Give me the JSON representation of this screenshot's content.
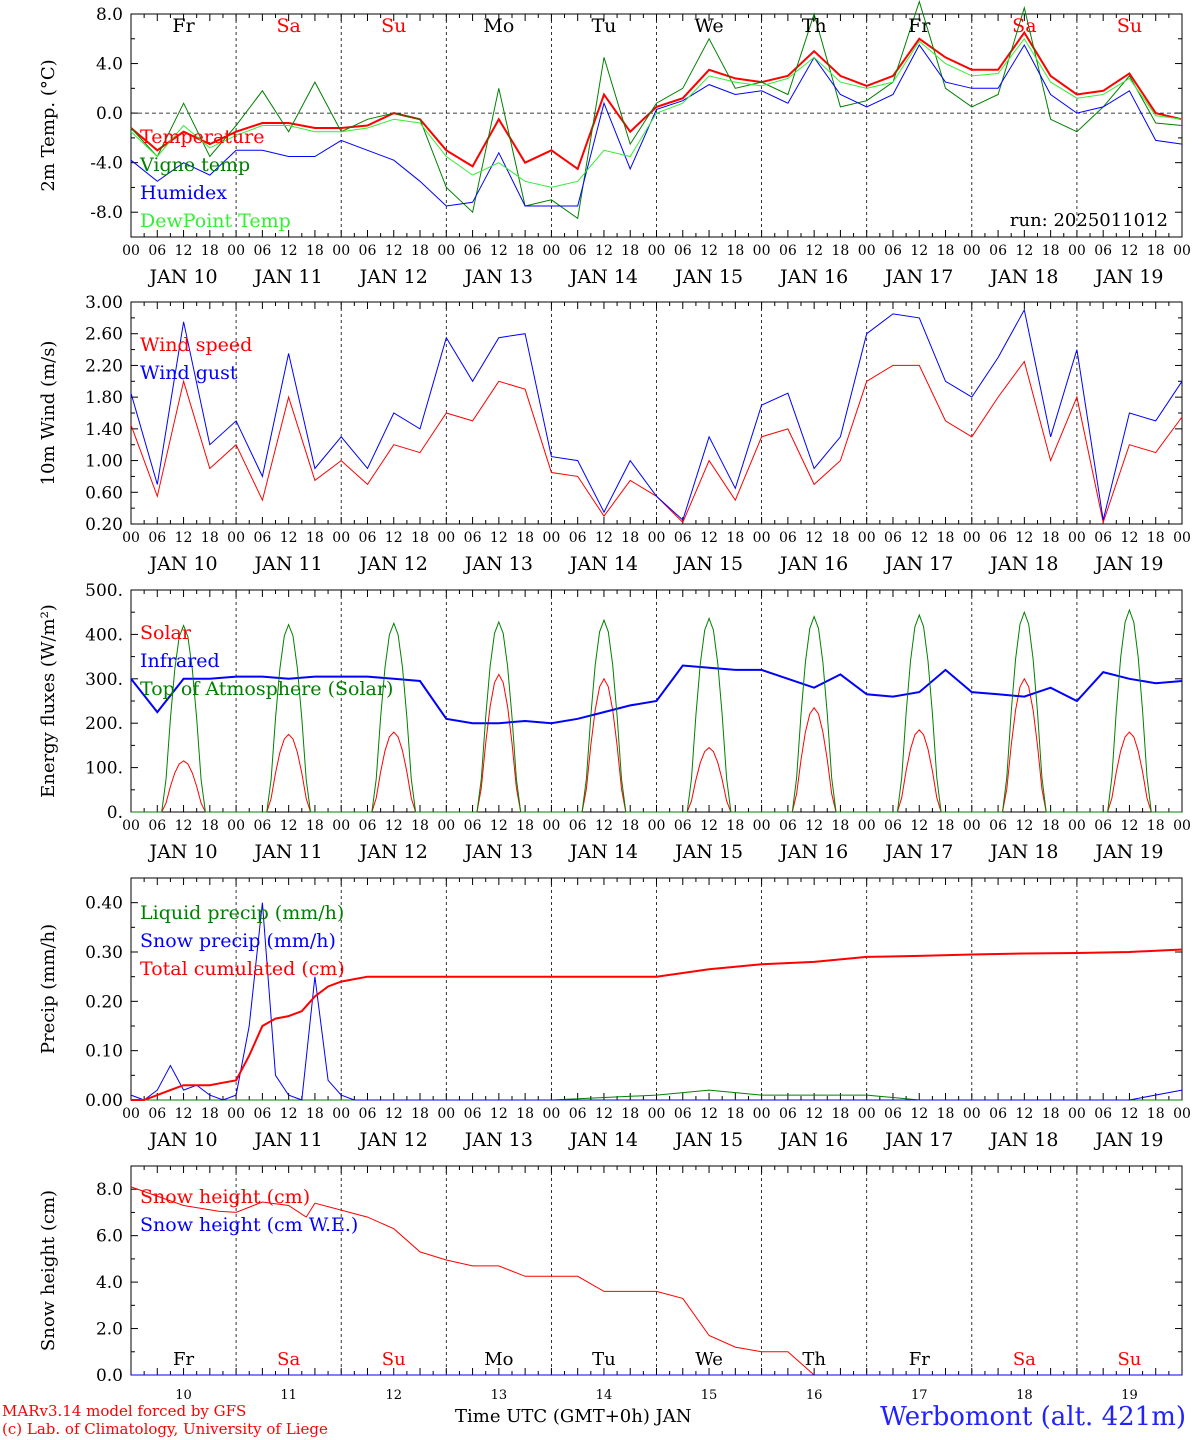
{
  "meta": {
    "run_label": "run: 2025011012",
    "model_credit": "MARv3.14 model forced by GFS",
    "lab_credit": "(c) Lab. of Climatology, University of Liege",
    "site": "Werbomont (alt. 421m)",
    "xaxis_title": "Time UTC (GMT+0h) JAN"
  },
  "axis": {
    "days": [
      "10",
      "11",
      "12",
      "13",
      "14",
      "15",
      "16",
      "17",
      "18",
      "19"
    ],
    "day_labels": [
      "JAN 10",
      "JAN 11",
      "JAN 12",
      "JAN 13",
      "JAN 14",
      "JAN 15",
      "JAN 16",
      "JAN 17",
      "JAN 18",
      "JAN 19"
    ],
    "hour_labels": [
      "00",
      "06",
      "12",
      "18"
    ],
    "weekday": [
      {
        "name": "Fr",
        "color": "#000000"
      },
      {
        "name": "Sa",
        "color": "#ff0000"
      },
      {
        "name": "Su",
        "color": "#ff0000"
      },
      {
        "name": "Mo",
        "color": "#000000"
      },
      {
        "name": "Tu",
        "color": "#000000"
      },
      {
        "name": "We",
        "color": "#000000"
      },
      {
        "name": "Th",
        "color": "#000000"
      },
      {
        "name": "Fr",
        "color": "#000000"
      },
      {
        "name": "Sa",
        "color": "#ff0000"
      },
      {
        "name": "Su",
        "color": "#ff0000"
      }
    ]
  },
  "colors": {
    "red": "#ff0000",
    "green": "#008000",
    "blue": "#0000ff",
    "lightgreen": "#33ee33"
  },
  "chart_data": [
    {
      "type": "line",
      "ylabel": "2m Temp. (°C)",
      "ylim": [
        -10,
        8
      ],
      "yticks": [
        -8,
        -4,
        0,
        4,
        8
      ],
      "ytick_labels": [
        "-8.0",
        "-4.0",
        "0.0",
        "4.0",
        "8.0"
      ],
      "zero_line": true,
      "x": [
        0,
        6,
        12,
        18,
        24,
        30,
        36,
        42,
        48,
        54,
        60,
        66,
        72,
        78,
        84,
        90,
        96,
        102,
        108,
        114,
        120,
        126,
        132,
        138,
        144,
        150,
        156,
        162,
        168,
        174,
        180,
        186,
        192,
        198,
        204,
        210,
        216,
        222,
        228,
        234,
        240
      ],
      "series": [
        {
          "name": "Temperature",
          "color": "#ff0000",
          "width": 2,
          "values": [
            -1.2,
            -3.0,
            -1.5,
            -2.5,
            -1.5,
            -0.8,
            -0.8,
            -1.2,
            -1.2,
            -1.0,
            0.0,
            -0.5,
            -3.0,
            -4.3,
            -0.5,
            -4.0,
            -3.0,
            -4.5,
            1.5,
            -1.5,
            0.5,
            1.2,
            3.5,
            2.8,
            2.5,
            3.0,
            5.0,
            3.0,
            2.2,
            3.0,
            6.0,
            4.5,
            3.5,
            3.5,
            6.5,
            3.0,
            1.5,
            1.8,
            3.2,
            0.0,
            -0.5
          ]
        },
        {
          "name": "Vigne temp",
          "color": "#008000",
          "width": 1,
          "values": [
            -1.2,
            -3.5,
            0.8,
            -3.5,
            -1.0,
            1.8,
            -1.5,
            2.5,
            -1.5,
            -0.5,
            0.0,
            -0.5,
            -6.0,
            -8.0,
            2.0,
            -7.5,
            -7.0,
            -8.5,
            4.5,
            -2.5,
            0.8,
            2.0,
            6.0,
            2.0,
            2.5,
            1.5,
            8.0,
            0.5,
            1.0,
            2.5,
            9.0,
            2.0,
            0.5,
            1.5,
            8.5,
            -0.5,
            -1.5,
            0.5,
            3.0,
            -0.8,
            -1.0
          ]
        },
        {
          "name": "Humidex",
          "color": "#0000ff",
          "width": 1,
          "values": [
            -3.8,
            -5.5,
            -4.0,
            -5.0,
            -3.0,
            -3.0,
            -3.5,
            -3.5,
            -2.2,
            -3.0,
            -3.8,
            -5.5,
            -7.5,
            -7.2,
            -3.2,
            -7.5,
            -7.5,
            -7.5,
            0.8,
            -4.5,
            0.3,
            1.0,
            2.3,
            1.5,
            1.8,
            0.8,
            4.5,
            1.5,
            0.5,
            1.5,
            5.5,
            2.5,
            2.0,
            2.0,
            5.5,
            1.5,
            0.0,
            0.5,
            1.8,
            -2.2,
            -2.5
          ]
        },
        {
          "name": "DewPoint Temp",
          "color": "#33ee33",
          "width": 1,
          "values": [
            -1.5,
            -3.5,
            -1.0,
            -2.8,
            -1.8,
            -1.0,
            -1.0,
            -1.5,
            -1.5,
            -1.2,
            -0.5,
            -0.8,
            -3.5,
            -5.0,
            -4.0,
            -5.5,
            -6.0,
            -5.5,
            -3.0,
            -3.5,
            0.0,
            0.8,
            3.0,
            2.5,
            2.2,
            2.8,
            4.5,
            2.5,
            2.0,
            2.5,
            5.8,
            4.0,
            3.0,
            3.2,
            6.0,
            2.5,
            1.2,
            1.5,
            2.8,
            -0.2,
            -0.5
          ]
        }
      ],
      "legend": {
        "placement": "top-left"
      }
    },
    {
      "type": "line",
      "ylabel": "10m Wind (m/s)",
      "ylim": [
        0.2,
        3.0
      ],
      "yticks": [
        0.2,
        0.6,
        1.0,
        1.4,
        1.8,
        2.2,
        2.6,
        3.0
      ],
      "ytick_labels": [
        "0.20",
        "0.60",
        "1.00",
        "1.40",
        "1.80",
        "2.20",
        "2.60",
        "3.00"
      ],
      "x": [
        0,
        6,
        12,
        18,
        24,
        30,
        36,
        42,
        48,
        54,
        60,
        66,
        72,
        78,
        84,
        90,
        96,
        102,
        108,
        114,
        120,
        126,
        132,
        138,
        144,
        150,
        156,
        162,
        168,
        174,
        180,
        186,
        192,
        198,
        204,
        210,
        216,
        222,
        228,
        234,
        240
      ],
      "series": [
        {
          "name": "Wind speed",
          "color": "#ff0000",
          "width": 1,
          "values": [
            1.45,
            0.55,
            2.0,
            0.9,
            1.2,
            0.5,
            1.8,
            0.75,
            1.0,
            0.7,
            1.2,
            1.1,
            1.6,
            1.5,
            2.0,
            1.9,
            0.85,
            0.8,
            0.3,
            0.75,
            0.55,
            0.22,
            1.0,
            0.5,
            1.3,
            1.4,
            0.7,
            1.0,
            2.0,
            2.2,
            2.2,
            1.5,
            1.3,
            1.8,
            2.25,
            1.0,
            1.8,
            0.22,
            1.2,
            1.1,
            1.55
          ]
        },
        {
          "name": "Wind gust",
          "color": "#0000ff",
          "width": 1,
          "values": [
            1.85,
            0.7,
            2.75,
            1.2,
            1.5,
            0.8,
            2.35,
            0.9,
            1.3,
            0.9,
            1.6,
            1.4,
            2.55,
            2.0,
            2.55,
            2.6,
            1.05,
            1.0,
            0.35,
            1.0,
            0.55,
            0.25,
            1.3,
            0.65,
            1.7,
            1.85,
            0.9,
            1.3,
            2.6,
            2.85,
            2.8,
            2.0,
            1.8,
            2.3,
            2.9,
            1.3,
            2.4,
            0.25,
            1.6,
            1.5,
            2.0
          ]
        }
      ],
      "legend": {
        "placement": "top-left"
      }
    },
    {
      "type": "line",
      "ylabel": "Energy fluxes (W/m²)",
      "ylim": [
        0,
        500
      ],
      "yticks": [
        0,
        100,
        200,
        300,
        400,
        500
      ],
      "ytick_labels": [
        "0.",
        "100.",
        "200.",
        "300.",
        "400.",
        "500."
      ],
      "x": [
        0,
        6,
        12,
        18,
        24,
        30,
        36,
        42,
        48,
        54,
        60,
        66,
        72,
        78,
        84,
        90,
        96,
        102,
        108,
        114,
        120,
        126,
        132,
        138,
        144,
        150,
        156,
        162,
        168,
        174,
        180,
        186,
        192,
        198,
        204,
        210,
        216,
        222,
        228,
        234,
        240
      ],
      "series": [
        {
          "name": "Solar",
          "color": "#ff0000",
          "width": 1,
          "peaks": [
            {
              "center": 12,
              "value": 115
            },
            {
              "center": 36,
              "value": 175
            },
            {
              "center": 60,
              "value": 180
            },
            {
              "center": 84,
              "value": 310
            },
            {
              "center": 108,
              "value": 300
            },
            {
              "center": 132,
              "value": 145
            },
            {
              "center": 156,
              "value": 235
            },
            {
              "center": 180,
              "value": 185
            },
            {
              "center": 204,
              "value": 300
            },
            {
              "center": 228,
              "value": 180
            }
          ],
          "half_width": 4.5
        },
        {
          "name": "Infrared",
          "color": "#0000ff",
          "width": 2,
          "values": [
            300,
            225,
            300,
            300,
            305,
            305,
            300,
            305,
            305,
            305,
            300,
            295,
            210,
            200,
            200,
            205,
            200,
            210,
            225,
            240,
            250,
            330,
            325,
            320,
            320,
            300,
            280,
            310,
            265,
            260,
            270,
            320,
            270,
            265,
            260,
            280,
            250,
            315,
            300,
            290,
            295
          ]
        },
        {
          "name": "Top of Atmosphere (Solar)",
          "color": "#008000",
          "width": 1,
          "peaks": [
            {
              "center": 12,
              "value": 420
            },
            {
              "center": 36,
              "value": 422
            },
            {
              "center": 60,
              "value": 425
            },
            {
              "center": 84,
              "value": 428
            },
            {
              "center": 108,
              "value": 432
            },
            {
              "center": 132,
              "value": 436
            },
            {
              "center": 156,
              "value": 440
            },
            {
              "center": 180,
              "value": 444
            },
            {
              "center": 204,
              "value": 450
            },
            {
              "center": 228,
              "value": 455
            }
          ],
          "half_width": 4.5
        }
      ],
      "legend": {
        "placement": "top-left"
      }
    },
    {
      "type": "line",
      "ylabel": "Precip (mm/h)",
      "ylim": [
        0,
        0.45
      ],
      "yticks": [
        0,
        0.1,
        0.2,
        0.3,
        0.4
      ],
      "ytick_labels": [
        "0.00",
        "0.10",
        "0.20",
        "0.30",
        "0.40"
      ],
      "x": [
        0,
        3,
        6,
        9,
        12,
        15,
        18,
        21,
        24,
        27,
        30,
        33,
        36,
        39,
        42,
        45,
        48,
        51,
        54,
        60,
        72,
        96,
        120,
        132,
        144,
        156,
        168,
        180,
        192,
        204,
        216,
        228,
        240
      ],
      "series": [
        {
          "name": "Liquid precip (mm/h)",
          "color": "#008000",
          "width": 1,
          "values": [
            0,
            0,
            0,
            0,
            0,
            0,
            0,
            0,
            0,
            0,
            0,
            0,
            0,
            0,
            0,
            0,
            0,
            0,
            0,
            0,
            0,
            0,
            0.01,
            0.02,
            0.01,
            0.01,
            0.01,
            0.0,
            0.0,
            0.0,
            0.0,
            0.0,
            0.0
          ]
        },
        {
          "name": "Snow precip (mm/h)",
          "color": "#0000ff",
          "width": 1,
          "values": [
            0.01,
            0.0,
            0.02,
            0.07,
            0.02,
            0.03,
            0.01,
            0.0,
            0.01,
            0.15,
            0.4,
            0.05,
            0.01,
            0.0,
            0.25,
            0.04,
            0.01,
            0.0,
            0.0,
            0.0,
            0.0,
            0.0,
            0.0,
            0.0,
            0.0,
            0.0,
            0.0,
            0.0,
            0.0,
            0.0,
            0.0,
            0.0,
            0.02
          ]
        },
        {
          "name": "Total cumulated (cm)",
          "color": "#ff0000",
          "width": 2,
          "values": [
            0.0,
            0.0,
            0.01,
            0.02,
            0.03,
            0.03,
            0.03,
            0.035,
            0.04,
            0.09,
            0.15,
            0.165,
            0.17,
            0.18,
            0.21,
            0.23,
            0.24,
            0.245,
            0.25,
            0.25,
            0.25,
            0.25,
            0.25,
            0.265,
            0.275,
            0.28,
            0.29,
            0.292,
            0.295,
            0.297,
            0.298,
            0.3,
            0.305
          ]
        }
      ],
      "legend": {
        "placement": "top-left"
      }
    },
    {
      "type": "line",
      "ylabel": "Snow height (cm)",
      "ylim": [
        0,
        9
      ],
      "yticks": [
        0,
        2,
        4,
        6,
        8
      ],
      "ytick_labels": [
        "0.0",
        "2.0",
        "4.0",
        "6.0",
        "8.0"
      ],
      "x": [
        0,
        12,
        20,
        24,
        30,
        36,
        40,
        42,
        48,
        54,
        60,
        66,
        72,
        78,
        84,
        90,
        96,
        102,
        108,
        114,
        120,
        126,
        132,
        138,
        144,
        150,
        156,
        162,
        168,
        180,
        192,
        204,
        216,
        228,
        240
      ],
      "series": [
        {
          "name": "Snow height (cm)",
          "color": "#ff0000",
          "width": 1,
          "values": [
            8.1,
            7.3,
            7.05,
            7.0,
            7.45,
            7.3,
            6.8,
            7.4,
            7.1,
            6.8,
            6.3,
            5.3,
            4.95,
            4.7,
            4.7,
            4.25,
            4.25,
            4.25,
            3.6,
            3.6,
            3.6,
            3.3,
            1.7,
            1.2,
            1.0,
            1.0,
            0.0,
            0.0,
            0.0,
            0.0,
            0.0,
            0.0,
            0.0,
            0.0,
            0.0
          ]
        },
        {
          "name": "Snow height (cm W.E.)",
          "color": "#0000ff",
          "width": 1,
          "values": [
            0,
            0,
            0,
            0,
            0,
            0,
            0,
            0,
            0,
            0,
            0,
            0,
            0,
            0,
            0,
            0,
            0,
            0,
            0,
            0,
            0,
            0,
            0,
            0,
            0,
            0,
            0,
            0,
            0,
            0,
            0,
            0,
            0,
            0,
            0
          ]
        }
      ],
      "legend": {
        "placement": "top-left"
      }
    }
  ]
}
